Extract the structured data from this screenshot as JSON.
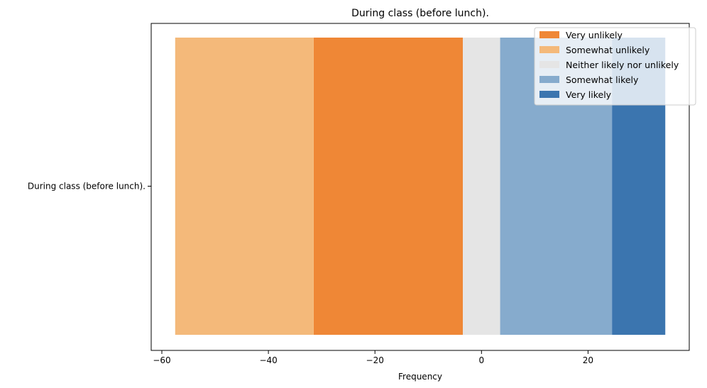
{
  "chart_data": {
    "type": "bar",
    "orientation": "horizontal",
    "stacked": "diverging",
    "title": "During class (before lunch).",
    "xlabel": "Frequency",
    "ylabel": "",
    "categories": [
      "During class (before lunch)."
    ],
    "xlim": [
      -62,
      39
    ],
    "xticks": [
      -60,
      -40,
      -20,
      0,
      20
    ],
    "xtick_labels": [
      "−60",
      "−40",
      "−20",
      "0",
      "20"
    ],
    "grid": false,
    "legend_position": "top-right",
    "series": [
      {
        "name": "Very unlikely",
        "color": "#ef8736",
        "start": -3.5,
        "end": -31.5
      },
      {
        "name": "Somewhat unlikely",
        "color": "#f4b97a",
        "start": -31.5,
        "end": -57.5
      },
      {
        "name": "Neither likely nor unlikely",
        "color": "#e5e5e5",
        "start": -3.5,
        "end": 3.5
      },
      {
        "name": "Somewhat likely",
        "color": "#86abcd",
        "start": 3.5,
        "end": 24.5
      },
      {
        "name": "Very likely",
        "color": "#3b75af",
        "start": 24.5,
        "end": 34.5
      }
    ]
  }
}
